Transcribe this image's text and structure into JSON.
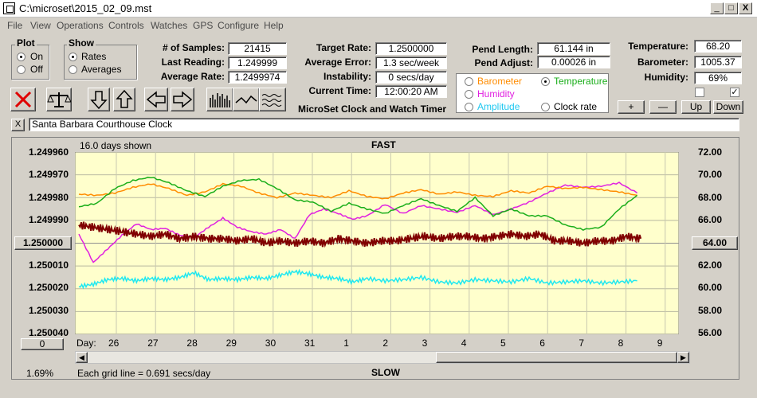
{
  "window": {
    "title": "C:\\microset\\2015_02_09.mst",
    "min": "_",
    "max": "□",
    "close": "X"
  },
  "menu": [
    "File",
    "View",
    "Operations",
    "Controls",
    "Watches",
    "GPS",
    "Configure",
    "Help"
  ],
  "plot_group": {
    "title": "Plot",
    "on": "On",
    "off": "Off"
  },
  "show_group": {
    "title": "Show",
    "rates": "Rates",
    "averages": "Averages"
  },
  "stats": {
    "samples_label": "# of Samples:",
    "samples": "21415",
    "last_label": "Last Reading:",
    "last": "1.249999",
    "avg_label": "Average Rate:",
    "avg": "1.2499974",
    "target_label": "Target Rate:",
    "target": "1.2500000",
    "avg_err_label": "Average Error:",
    "avg_err": "1.3 sec/week",
    "instab_label": "Instability:",
    "instab": "0 secs/day",
    "time_label": "Current Time:",
    "time": "12:00:20 AM",
    "pend_len_label": "Pend Length:",
    "pend_len": "61.144 in",
    "pend_adj_label": "Pend Adjust:",
    "pend_adj": "0.00026 in",
    "temp_label": "Temperature:",
    "temp": "68.20",
    "baro_label": "Barometer:",
    "baro": "1005.37",
    "hum_label": "Humidity:",
    "hum": "69%"
  },
  "app_title": "MicroSet Clock and Watch Timer",
  "sensors": {
    "barometer": "Barometer",
    "temperature": "Temperature",
    "humidity": "Humidity",
    "amplitude": "Amplitude",
    "clock_rate": "Clock rate"
  },
  "adjust_buttons": {
    "plus": "+",
    "minus": "—",
    "up": "Up",
    "down": "Down"
  },
  "checks": {
    "left": "",
    "right": "✓"
  },
  "clock_name": "Santa Barbara Courthouse Clock",
  "clock_close": "X",
  "plot": {
    "days_shown": "16.0 days shown",
    "fast": "FAST",
    "slow": "SLOW",
    "grid_note": "Each grid line = 0.691 secs/day",
    "pct": "1.69%",
    "left_btn": "1.250000",
    "right_btn": "64.00",
    "zero_btn": "0",
    "day_label": "Day:"
  },
  "colors": {
    "plot_bg": "#ffffcc",
    "rate": "#800000",
    "temperature": "#1aae1a",
    "barometer": "#ff8c00",
    "humidity": "#e020e0",
    "amplitude": "#20e8f0"
  },
  "chart_data": {
    "type": "line",
    "left_axis": [
      "1.249960",
      "1.249970",
      "1.249980",
      "1.249990",
      "1.250000",
      "1.250010",
      "1.250020",
      "1.250030",
      "1.250040"
    ],
    "right_axis": [
      "72.00",
      "70.00",
      "68.00",
      "66.00",
      "64.00",
      "62.00",
      "60.00",
      "58.00",
      "56.00"
    ],
    "days": [
      "26",
      "27",
      "28",
      "29",
      "30",
      "31",
      "1",
      "2",
      "3",
      "4",
      "5",
      "6",
      "7",
      "8",
      "9"
    ],
    "ylim_left": [
      1.24996,
      1.25004
    ],
    "ylim_right": [
      56,
      72
    ],
    "xlim": [
      0,
      16
    ],
    "series": [
      {
        "key": "rate",
        "axis": "left",
        "x": [
          0,
          0.4,
          0.8,
          1.2,
          1.6,
          2.0,
          2.4,
          2.8,
          3.2,
          3.6,
          4.0,
          4.4,
          4.8,
          5.2,
          5.6,
          6.0,
          6.4,
          6.8,
          7.2,
          7.6,
          8.0,
          8.4,
          8.8,
          9.2,
          9.6,
          10.0,
          10.4,
          10.8,
          11.2,
          11.6,
          12.0,
          12.4,
          12.8,
          13.2,
          13.6,
          14.0,
          14.4,
          14.8,
          15.2,
          15.6
        ],
        "y": [
          1.249992,
          1.249993,
          1.249994,
          1.249995,
          1.249996,
          1.249997,
          1.249996,
          1.249998,
          1.249997,
          1.249998,
          1.249998,
          1.249999,
          1.249998,
          1.25,
          1.249999,
          1.25,
          1.249999,
          1.25,
          1.249998,
          1.249999,
          1.25,
          1.249999,
          1.249999,
          1.249998,
          1.249997,
          1.249998,
          1.249997,
          1.249997,
          1.249998,
          1.249997,
          1.249996,
          1.249997,
          1.249996,
          1.249999,
          1.249999,
          1.25,
          1.249999,
          1.249999,
          1.249997,
          1.249998
        ]
      },
      {
        "key": "temperature",
        "axis": "right",
        "x": [
          0,
          0.5,
          1.0,
          1.5,
          2.0,
          2.5,
          3.0,
          3.5,
          4.0,
          4.5,
          5.0,
          5.5,
          6.0,
          6.5,
          7.0,
          7.5,
          8.0,
          8.5,
          9.0,
          9.5,
          10.0,
          10.5,
          11.0,
          11.5,
          12.0,
          12.5,
          13.0,
          13.5,
          14.0,
          14.5,
          15.0,
          15.5
        ],
        "y": [
          67.2,
          67.5,
          68.8,
          69.5,
          69.8,
          69.3,
          68.6,
          68.1,
          69.0,
          69.5,
          69.6,
          68.8,
          67.8,
          67.6,
          66.8,
          67.5,
          67.0,
          66.6,
          67.3,
          67.9,
          67.3,
          66.8,
          68.0,
          66.4,
          67.0,
          66.4,
          66.4,
          65.6,
          65.2,
          65.4,
          67.0,
          68.2
        ]
      },
      {
        "key": "barometer",
        "axis": "right",
        "x": [
          0,
          0.5,
          1.0,
          1.5,
          2.0,
          2.5,
          3.0,
          3.5,
          4.0,
          4.5,
          5.0,
          5.5,
          6.0,
          6.5,
          7.0,
          7.5,
          8.0,
          8.5,
          9.0,
          9.5,
          10.0,
          10.5,
          11.0,
          11.5,
          12.0,
          12.5,
          13.0,
          13.5,
          14.0,
          14.5,
          15.0,
          15.5
        ],
        "y": [
          68.3,
          68.2,
          68.4,
          68.9,
          69.2,
          68.8,
          68.2,
          68.5,
          69.2,
          69.0,
          68.4,
          68.0,
          68.4,
          68.2,
          68.0,
          68.6,
          68.1,
          67.9,
          68.4,
          68.7,
          68.3,
          68.5,
          68.2,
          68.1,
          68.6,
          68.4,
          69.0,
          68.8,
          68.9,
          68.7,
          68.5,
          68.2
        ]
      },
      {
        "key": "humidity",
        "axis": "right",
        "x": [
          0,
          0.4,
          0.8,
          1.2,
          1.6,
          2.0,
          2.4,
          2.8,
          3.2,
          3.6,
          4.0,
          4.4,
          4.8,
          5.2,
          5.6,
          6.0,
          6.4,
          6.8,
          7.2,
          7.6,
          8.0,
          8.5,
          9.0,
          9.5,
          10.0,
          10.5,
          11.0,
          11.5,
          12.0,
          12.5,
          13.0,
          13.5,
          14.0,
          14.5,
          15.0,
          15.5
        ],
        "y": [
          64.8,
          62.3,
          63.5,
          64.7,
          65.7,
          65.2,
          65.3,
          64.7,
          64.5,
          65.4,
          66.2,
          65.4,
          65.0,
          64.8,
          65.2,
          64.4,
          66.5,
          67.0,
          66.6,
          66.1,
          66.4,
          67.4,
          66.6,
          67.3,
          67.0,
          66.7,
          67.3,
          66.5,
          67.0,
          67.6,
          68.4,
          69.1,
          68.9,
          69.0,
          69.3,
          68.4
        ]
      },
      {
        "key": "amplitude",
        "axis": "right",
        "x": [
          0,
          0.4,
          0.8,
          1.2,
          1.6,
          2.0,
          2.4,
          2.8,
          3.2,
          3.6,
          4.0,
          4.4,
          4.8,
          5.2,
          5.6,
          6.0,
          6.4,
          6.8,
          7.2,
          7.6,
          8.0,
          8.5,
          9.0,
          9.5,
          10.0,
          10.5,
          11.0,
          11.5,
          12.0,
          12.5,
          13.0,
          13.5,
          14.0,
          14.5,
          15.0,
          15.5
        ],
        "y": [
          60.2,
          60.4,
          60.8,
          60.9,
          60.7,
          60.9,
          60.8,
          61.0,
          61.4,
          60.8,
          60.9,
          60.8,
          61.0,
          60.9,
          61.2,
          61.5,
          61.3,
          61.0,
          60.9,
          60.6,
          60.9,
          60.7,
          60.8,
          61.0,
          60.6,
          60.5,
          60.8,
          60.7,
          60.6,
          60.9,
          60.5,
          60.6,
          60.7,
          60.5,
          60.6,
          60.7
        ]
      }
    ]
  }
}
